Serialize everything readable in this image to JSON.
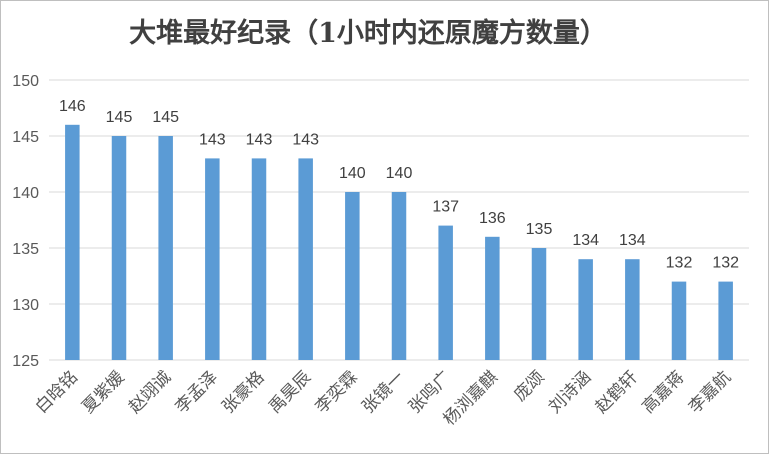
{
  "chart_data": {
    "type": "bar",
    "title": "大堆最好纪录（1小时内还原魔方数量）",
    "xlabel": "",
    "ylabel": "",
    "ylim": [
      125,
      150
    ],
    "yticks": [
      125,
      130,
      135,
      140,
      145,
      150
    ],
    "grid": true,
    "legend": "none",
    "categories": [
      "白晗铭",
      "夏紫媛",
      "赵翊诚",
      "李孟泽",
      "张豪格",
      "禹昊辰",
      "李奕霖",
      "张镜一",
      "张鸣广",
      "杨浏嘉麒",
      "庞颂",
      "刘诗涵",
      "赵鹤轩",
      "高嘉蒋",
      "李嘉航"
    ],
    "values": [
      146,
      145,
      145,
      143,
      143,
      143,
      140,
      140,
      137,
      136,
      135,
      134,
      134,
      132,
      132
    ],
    "colors": {
      "bar": "#5b9bd5",
      "grid": "#d9d9d9",
      "text": "#595959"
    }
  }
}
